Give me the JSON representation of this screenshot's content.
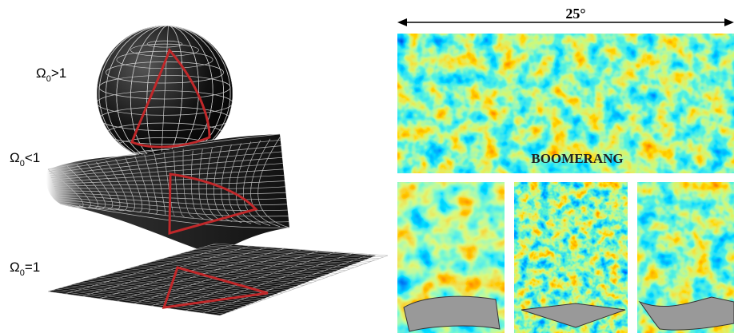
{
  "geometries": [
    {
      "symbol": "Ω",
      "subscript": "0",
      "relation": ">1"
    },
    {
      "symbol": "Ω",
      "subscript": "0",
      "relation": "<1"
    },
    {
      "symbol": "Ω",
      "subscript": "0",
      "relation": "=1"
    }
  ],
  "scale_label": "25°",
  "map_label": "BOOMERANG"
}
